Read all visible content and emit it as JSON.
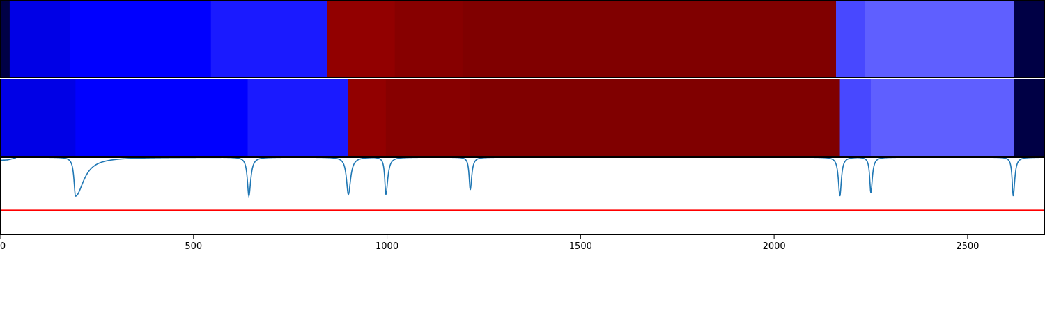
{
  "chart_data": [
    {
      "type": "heatmap",
      "panel": "top",
      "xlim": [
        0,
        2700
      ],
      "colormap": "seismic",
      "segments": [
        {
          "x0": 0,
          "x1": 25,
          "color": "#000045"
        },
        {
          "x0": 25,
          "x1": 180,
          "color": "#0000e6"
        },
        {
          "x0": 180,
          "x1": 545,
          "color": "#0000ff"
        },
        {
          "x0": 545,
          "x1": 845,
          "color": "#1a1aff"
        },
        {
          "x0": 845,
          "x1": 1020,
          "color": "#920000"
        },
        {
          "x0": 1020,
          "x1": 1195,
          "color": "#870000"
        },
        {
          "x0": 1195,
          "x1": 2160,
          "color": "#800000"
        },
        {
          "x0": 2160,
          "x1": 2235,
          "color": "#4848ff"
        },
        {
          "x0": 2235,
          "x1": 2620,
          "color": "#5f5fff"
        },
        {
          "x0": 2620,
          "x1": 2700,
          "color": "#000045"
        }
      ]
    },
    {
      "type": "heatmap",
      "panel": "middle",
      "xlim": [
        0,
        2700
      ],
      "colormap": "seismic",
      "segments": [
        {
          "x0": 0,
          "x1": 195,
          "color": "#0000e6"
        },
        {
          "x0": 195,
          "x1": 640,
          "color": "#0000ff"
        },
        {
          "x0": 640,
          "x1": 900,
          "color": "#1a1aff"
        },
        {
          "x0": 900,
          "x1": 997,
          "color": "#920000"
        },
        {
          "x0": 997,
          "x1": 1215,
          "color": "#870000"
        },
        {
          "x0": 1215,
          "x1": 2170,
          "color": "#800000"
        },
        {
          "x0": 2170,
          "x1": 2250,
          "color": "#4848ff"
        },
        {
          "x0": 2250,
          "x1": 2620,
          "color": "#5f5fff"
        },
        {
          "x0": 2620,
          "x1": 2700,
          "color": "#000045"
        }
      ]
    },
    {
      "type": "line",
      "panel": "bottom",
      "xlim": [
        0,
        2700
      ],
      "ylim": [
        -1,
        0
      ],
      "x_ticks": [
        0,
        500,
        1000,
        1500,
        2000,
        2500
      ],
      "x_tick_labels": [
        "0",
        "500",
        "1000",
        "1500",
        "2000",
        "2500"
      ],
      "series": [
        {
          "color": "#1f77b4",
          "baseline": -0.04,
          "early_ramp": [
            [
              0,
              -0.04
            ],
            [
              20,
              -0.035
            ],
            [
              40,
              -0.01
            ]
          ],
          "dips": [
            {
              "x": 195,
              "depth": -0.5,
              "width_left": 8,
              "width_right": 45
            },
            {
              "x": 643,
              "depth": -0.5,
              "width_left": 8,
              "width_right": 10
            },
            {
              "x": 900,
              "depth": -0.48,
              "width_left": 10,
              "width_right": 12
            },
            {
              "x": 997,
              "depth": -0.48,
              "width_left": 6,
              "width_right": 10
            },
            {
              "x": 1215,
              "depth": -0.42,
              "width_left": 6,
              "width_right": 8
            },
            {
              "x": 2170,
              "depth": -0.5,
              "width_left": 8,
              "width_right": 8
            },
            {
              "x": 2250,
              "depth": -0.46,
              "width_left": 6,
              "width_right": 8
            },
            {
              "x": 2618,
              "depth": -0.5,
              "width_left": 6,
              "width_right": 8
            }
          ]
        },
        {
          "color": "#ff0000",
          "values_constant": -0.68
        }
      ]
    }
  ]
}
